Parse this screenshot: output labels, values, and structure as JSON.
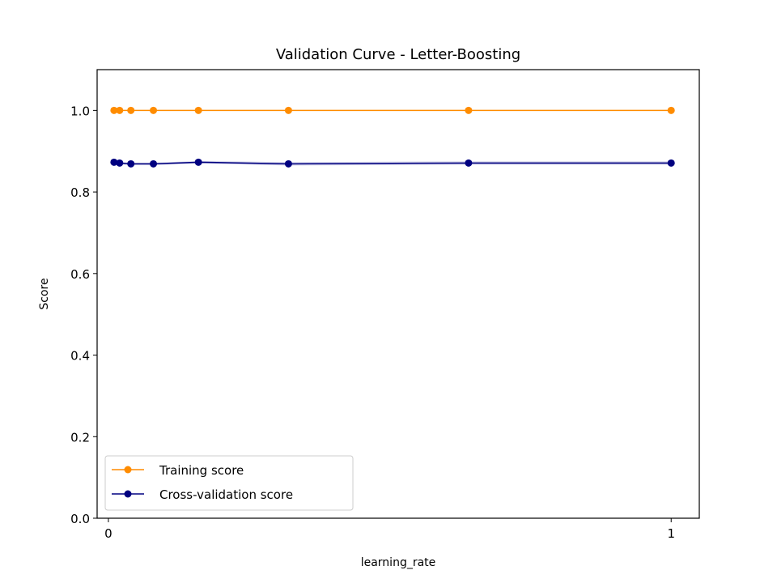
{
  "chart_data": {
    "type": "line",
    "title": "Validation Curve - Letter-Boosting",
    "xlabel": "learning_rate",
    "ylabel": "Score",
    "xlim": [
      -0.02,
      1.05
    ],
    "ylim": [
      0.0,
      1.1
    ],
    "xticks": [
      0,
      1
    ],
    "xtick_labels": [
      "0",
      "1"
    ],
    "yticks": [
      0.0,
      0.2,
      0.4,
      0.6,
      0.8,
      1.0
    ],
    "ytick_labels": [
      "0.0",
      "0.2",
      "0.4",
      "0.6",
      "0.8",
      "1.0"
    ],
    "grid": false,
    "legend_position": "lower-left",
    "x": [
      0.01,
      0.02,
      0.04,
      0.08,
      0.16,
      0.32,
      0.64,
      1.0
    ],
    "series": [
      {
        "name": "Training score",
        "color": "#ff8c00",
        "values": [
          1.0,
          1.0,
          1.0,
          1.0,
          1.0,
          1.0,
          1.0,
          1.0
        ],
        "std": [
          0,
          0,
          0,
          0,
          0,
          0,
          0,
          0
        ]
      },
      {
        "name": "Cross-validation score",
        "color": "#000080",
        "values": [
          0.873,
          0.871,
          0.869,
          0.869,
          0.873,
          0.869,
          0.871,
          0.871
        ],
        "std": [
          0.003,
          0.003,
          0.003,
          0.003,
          0.003,
          0.004,
          0.004,
          0.004
        ]
      }
    ]
  }
}
